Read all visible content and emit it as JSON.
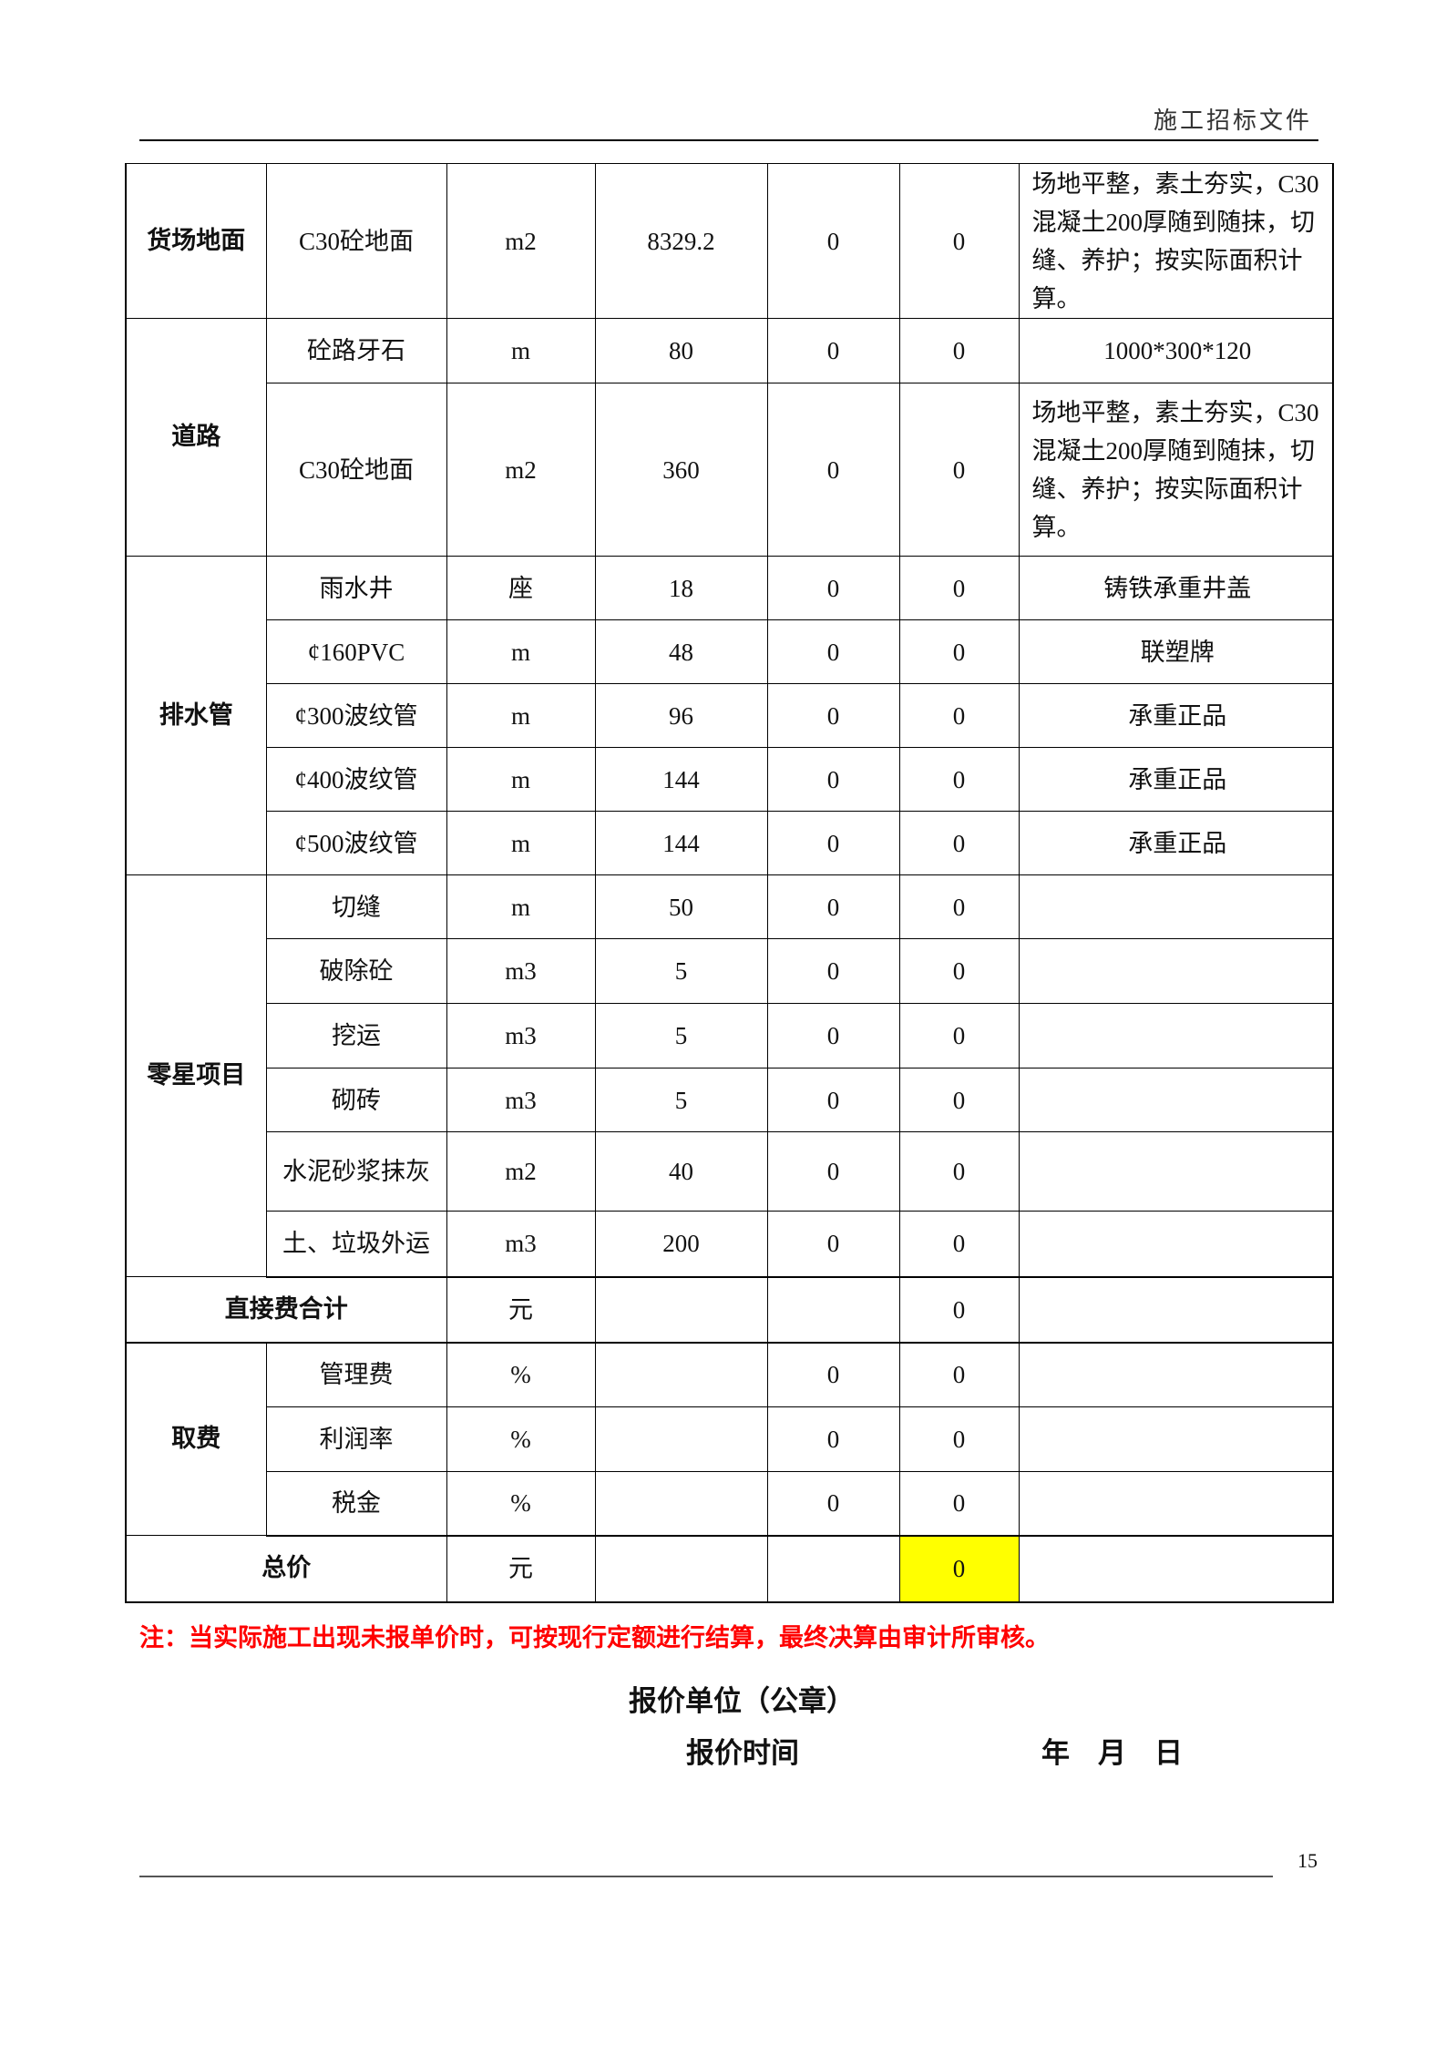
{
  "header": {
    "title": "施工招标文件"
  },
  "table": {
    "groups": [
      {
        "category": "货场地面",
        "items": [
          {
            "name": "C30砼地面",
            "unit": "m2",
            "qty": "8329.2",
            "price": "0",
            "amount": "0",
            "note": "场地平整，素土夯实，C30混凝土200厚随到随抹，切缝、养护；按实际面积计算。"
          }
        ]
      },
      {
        "category": "道路",
        "items": [
          {
            "name": "砼路牙石",
            "unit": "m",
            "qty": "80",
            "price": "0",
            "amount": "0",
            "note": "1000*300*120"
          },
          {
            "name": "C30砼地面",
            "unit": "m2",
            "qty": "360",
            "price": "0",
            "amount": "0",
            "note": "场地平整，素土夯实，C30混凝土200厚随到随抹，切缝、养护；按实际面积计算。"
          }
        ]
      },
      {
        "category": "排水管",
        "items": [
          {
            "name": "雨水井",
            "unit": "座",
            "qty": "18",
            "price": "0",
            "amount": "0",
            "note": "铸铁承重井盖"
          },
          {
            "name": "¢160PVC",
            "unit": "m",
            "qty": "48",
            "price": "0",
            "amount": "0",
            "note": "联塑牌"
          },
          {
            "name": "¢300波纹管",
            "unit": "m",
            "qty": "96",
            "price": "0",
            "amount": "0",
            "note": "承重正品"
          },
          {
            "name": "¢400波纹管",
            "unit": "m",
            "qty": "144",
            "price": "0",
            "amount": "0",
            "note": "承重正品"
          },
          {
            "name": "¢500波纹管",
            "unit": "m",
            "qty": "144",
            "price": "0",
            "amount": "0",
            "note": "承重正品"
          }
        ]
      },
      {
        "category": "零星项目",
        "items": [
          {
            "name": "切缝",
            "unit": "m",
            "qty": "50",
            "price": "0",
            "amount": "0",
            "note": ""
          },
          {
            "name": "破除砼",
            "unit": "m3",
            "qty": "5",
            "price": "0",
            "amount": "0",
            "note": ""
          },
          {
            "name": "挖运",
            "unit": "m3",
            "qty": "5",
            "price": "0",
            "amount": "0",
            "note": ""
          },
          {
            "name": "砌砖",
            "unit": "m3",
            "qty": "5",
            "price": "0",
            "amount": "0",
            "note": ""
          },
          {
            "name": "水泥砂浆抹灰",
            "unit": "m2",
            "qty": "40",
            "price": "0",
            "amount": "0",
            "note": ""
          },
          {
            "name": "土、垃圾外运",
            "unit": "m3",
            "qty": "200",
            "price": "0",
            "amount": "0",
            "note": ""
          }
        ]
      }
    ],
    "direct_total": {
      "label": "直接费合计",
      "unit": "元",
      "qty": "",
      "price": "",
      "amount": "0",
      "note": ""
    },
    "fees": {
      "category": "取费",
      "items": [
        {
          "name": "管理费",
          "unit": "%",
          "qty": "",
          "price": "0",
          "amount": "0",
          "note": ""
        },
        {
          "name": "利润率",
          "unit": "%",
          "qty": "",
          "price": "0",
          "amount": "0",
          "note": ""
        },
        {
          "name": "税金",
          "unit": "%",
          "qty": "",
          "price": "0",
          "amount": "0",
          "note": ""
        }
      ]
    },
    "grand_total": {
      "label": "总价",
      "unit": "元",
      "qty": "",
      "price": "",
      "amount": "0",
      "note": "",
      "highlight_color": "#ffff00"
    }
  },
  "footnote": "注：当实际施工出现未报单价时，可按现行定额进行结算，最终决算由审计所审核。",
  "signature": {
    "unit_label": "报价单位（公章）",
    "time_label": "报价时间",
    "date_label": "年　月　日"
  },
  "page_number": "15"
}
